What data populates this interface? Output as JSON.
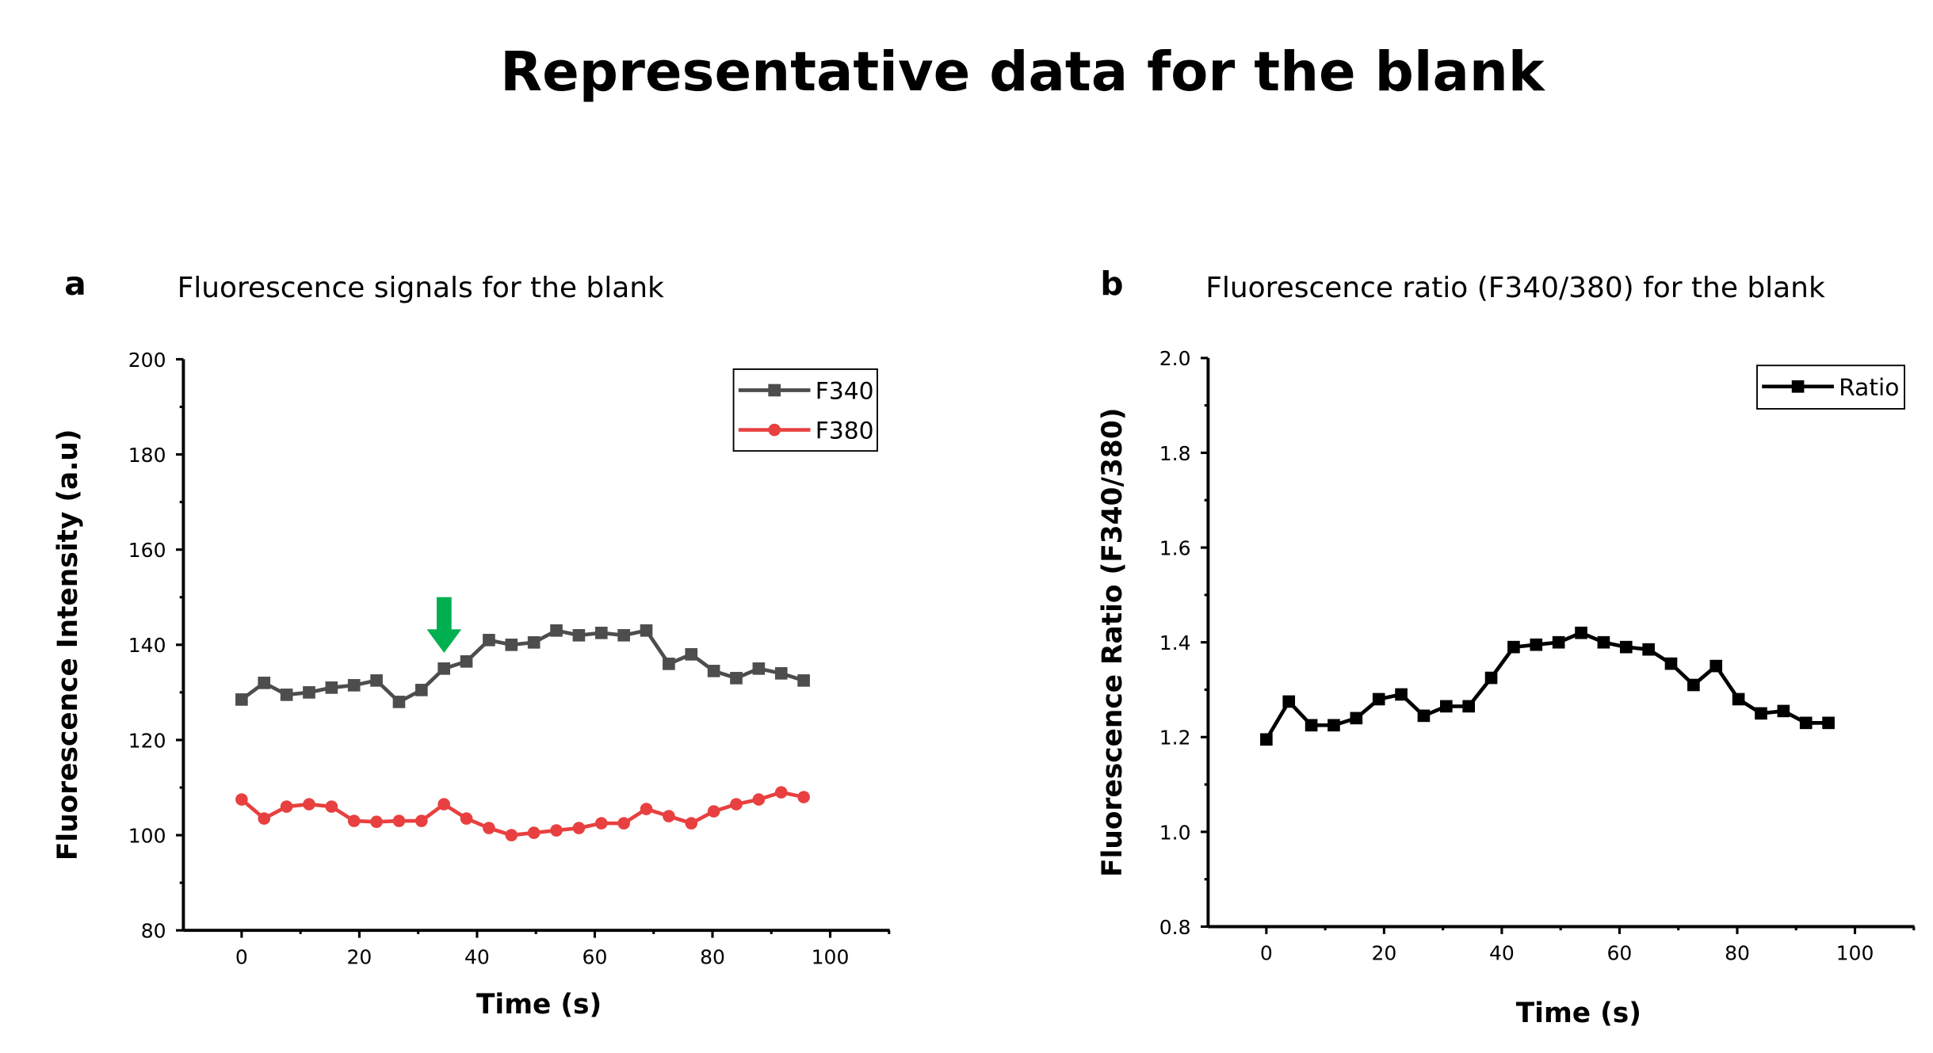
{
  "title": "Representative data for the blank",
  "chart_data": [
    {
      "type": "line",
      "panel": "a",
      "title": "Fluorescence signals for the blank",
      "xlabel": "Time (s)",
      "ylabel": "Fluorescence Intensity (a.u)",
      "xlim": [
        -10,
        110
      ],
      "ylim": [
        80,
        200
      ],
      "xticks": [
        0,
        20,
        40,
        60,
        80,
        100
      ],
      "yticks": [
        80,
        100,
        120,
        140,
        160,
        180,
        200
      ],
      "legend_position": "top-right",
      "annotation": "green-down-arrow at t≈34",
      "arrow_x": 34.4,
      "x": [
        0,
        3.82,
        7.64,
        11.46,
        15.28,
        19.1,
        22.92,
        26.74,
        30.56,
        34.38,
        38.2,
        42.02,
        45.84,
        49.66,
        53.48,
        57.3,
        61.12,
        64.94,
        68.76,
        72.58,
        76.4,
        80.22,
        84.04,
        87.86,
        91.68,
        95.5
      ],
      "series": [
        {
          "name": "F340",
          "color": "#4d4d4d",
          "marker": "square",
          "values": [
            128.5,
            132,
            129.5,
            130,
            131,
            131.5,
            132.5,
            128,
            130.5,
            135,
            136.5,
            141,
            140,
            140.5,
            143,
            142,
            142.5,
            142,
            143,
            136,
            138,
            134.5,
            133,
            135,
            134,
            132.5
          ]
        },
        {
          "name": "F380",
          "color": "#e84040",
          "marker": "circle",
          "values": [
            107.5,
            103.5,
            106,
            106.5,
            106,
            103,
            102.8,
            103,
            103,
            106.5,
            103.5,
            101.5,
            100,
            100.5,
            101,
            101.5,
            102.5,
            102.5,
            105.5,
            104,
            102.5,
            105,
            106.5,
            107.5,
            109,
            108
          ]
        }
      ]
    },
    {
      "type": "line",
      "panel": "b",
      "title": "Fluorescence ratio (F340/380) for the blank",
      "xlabel": "Time (s)",
      "ylabel": "Fluorescence Ratio (F340/380)",
      "xlim": [
        -10,
        110
      ],
      "ylim": [
        0.8,
        2.0
      ],
      "xticks": [
        0,
        20,
        40,
        60,
        80,
        100
      ],
      "yticks": [
        0.8,
        1.0,
        1.2,
        1.4,
        1.6,
        1.8,
        2.0
      ],
      "legend_position": "top-right",
      "x": [
        0,
        3.82,
        7.64,
        11.46,
        15.28,
        19.1,
        22.92,
        26.74,
        30.56,
        34.38,
        38.2,
        42.02,
        45.84,
        49.66,
        53.48,
        57.3,
        61.12,
        64.94,
        68.76,
        72.58,
        76.4,
        80.22,
        84.04,
        87.86,
        91.68,
        95.5
      ],
      "series": [
        {
          "name": "Ratio",
          "color": "#000000",
          "marker": "square",
          "values": [
            1.195,
            1.275,
            1.225,
            1.225,
            1.24,
            1.28,
            1.29,
            1.245,
            1.265,
            1.265,
            1.325,
            1.39,
            1.395,
            1.4,
            1.42,
            1.4,
            1.39,
            1.385,
            1.355,
            1.31,
            1.35,
            1.28,
            1.25,
            1.255,
            1.23,
            1.23
          ]
        }
      ]
    }
  ]
}
